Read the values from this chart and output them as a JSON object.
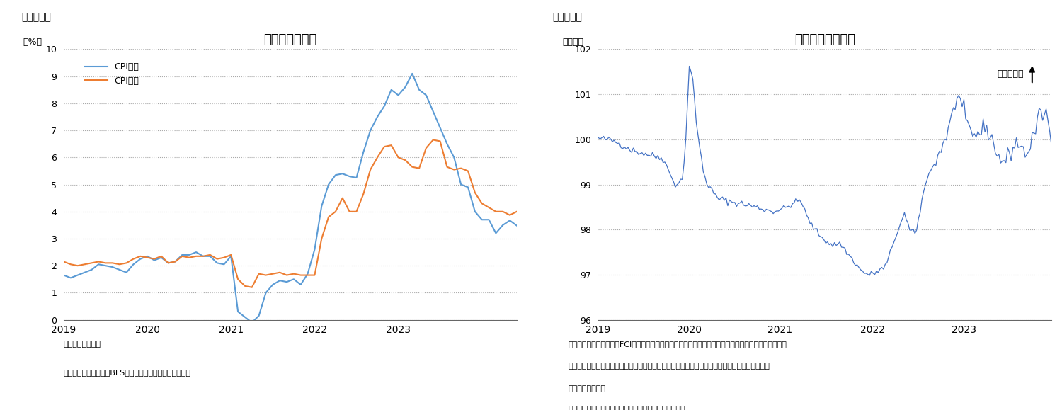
{
  "chart1": {
    "title": "消費者物価指数",
    "label_y": "（%）",
    "header": "（図表５）",
    "ylim": [
      0,
      10
    ],
    "yticks": [
      0,
      1,
      2,
      3,
      4,
      5,
      6,
      7,
      8,
      9,
      10
    ],
    "note1": "（注）前年同月比",
    "note2": "（資料）労働統計局（BLS）よりニッセイ基礎研究所作成",
    "legend": [
      "CPI総合",
      "CPIコア"
    ],
    "line1_color": "#5B9BD5",
    "line2_color": "#ED7D31",
    "cpi_total": [
      1.65,
      1.55,
      1.65,
      1.75,
      1.85,
      2.05,
      2.0,
      1.95,
      1.85,
      1.75,
      2.05,
      2.25,
      2.35,
      2.2,
      2.3,
      2.1,
      2.15,
      2.4,
      2.4,
      2.5,
      2.35,
      2.35,
      2.1,
      2.05,
      2.35,
      0.3,
      0.1,
      -0.1,
      0.15,
      1.0,
      1.3,
      1.45,
      1.4,
      1.5,
      1.3,
      1.7,
      2.6,
      4.2,
      5.0,
      5.35,
      5.4,
      5.3,
      5.25,
      6.2,
      7.0,
      7.5,
      7.9,
      8.5,
      8.3,
      8.6,
      9.1,
      8.5,
      8.3,
      7.7,
      7.1,
      6.5,
      6.0,
      5.0,
      4.9,
      4.0,
      3.7,
      3.7,
      3.2,
      3.5,
      3.67,
      3.48
    ],
    "cpi_core": [
      2.15,
      2.05,
      2.0,
      2.05,
      2.1,
      2.15,
      2.1,
      2.1,
      2.05,
      2.1,
      2.25,
      2.35,
      2.3,
      2.25,
      2.35,
      2.1,
      2.15,
      2.35,
      2.3,
      2.35,
      2.35,
      2.4,
      2.25,
      2.3,
      2.4,
      1.5,
      1.25,
      1.2,
      1.7,
      1.65,
      1.7,
      1.75,
      1.65,
      1.7,
      1.65,
      1.65,
      1.65,
      3.0,
      3.8,
      4.0,
      4.5,
      4.0,
      4.0,
      4.65,
      5.55,
      6.0,
      6.4,
      6.45,
      6.0,
      5.9,
      5.65,
      5.6,
      6.35,
      6.65,
      6.6,
      5.65,
      5.55,
      5.6,
      5.5,
      4.7,
      4.3,
      4.15,
      4.0,
      4.0,
      3.87,
      4.0
    ],
    "xtick_labels": [
      "2019",
      "2020",
      "2021",
      "2022",
      "2023"
    ],
    "xtick_positions": [
      0,
      12,
      24,
      36,
      48
    ]
  },
  "chart2": {
    "title": "米国金融環境指数",
    "label_y": "（指数）",
    "header": "（図表６）",
    "ylim": [
      96,
      102
    ],
    "yticks": [
      96,
      97,
      98,
      99,
      100,
      101,
      102
    ],
    "note1": "（注）金融環境指数は（FCI）はゴールドマン・サックス・グローバル投資調査部が産出する、株式、",
    "note2": "　　信用スプレッド、為替、金利など一連の市場指標に基づいて金融変数の実体経済への影響を",
    "note3": "　　測定する指数",
    "note4": "（資料）ブルームバーグよりニッセイ基礎研究所作成。",
    "annotation": "引き締まり",
    "line_color": "#4472C4",
    "xtick_labels": [
      "2019",
      "2020",
      "2021",
      "2022",
      "2023"
    ],
    "xtick_positions": [
      0,
      52,
      104,
      157,
      209
    ]
  }
}
